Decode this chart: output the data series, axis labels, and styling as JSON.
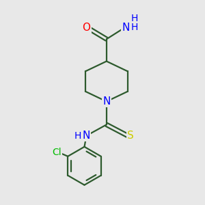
{
  "bg_color": "#e8e8e8",
  "bond_color": "#2d5a2d",
  "bond_width": 1.6,
  "atom_colors": {
    "O": "#ff0000",
    "N": "#0000ff",
    "S": "#cccc00",
    "Cl": "#00bb00",
    "C": "#2d5a2d",
    "H": "#0000ff"
  },
  "font_size": 11
}
